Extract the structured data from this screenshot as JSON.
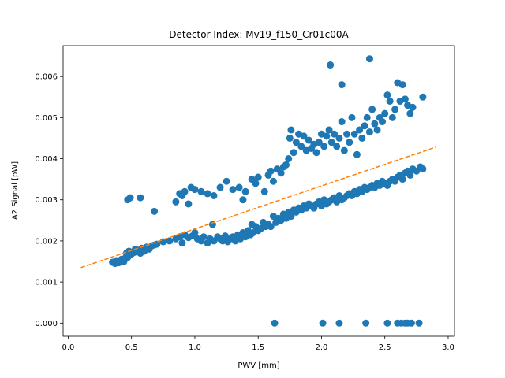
{
  "chart_data": {
    "type": "scatter",
    "title": "Detector Index: Mv19_f150_Cr01c00A",
    "xlabel": "PWV [mm]",
    "ylabel": "A2 Signal [pW]",
    "xlim": [
      -0.04,
      3.05
    ],
    "ylim": [
      -0.00032,
      0.00675
    ],
    "xticks": [
      0.0,
      0.5,
      1.0,
      1.5,
      2.0,
      2.5,
      3.0
    ],
    "xtick_labels": [
      "0.0",
      "0.5",
      "1.0",
      "1.5",
      "2.0",
      "2.5",
      "3.0"
    ],
    "yticks": [
      0.0,
      0.001,
      0.002,
      0.003,
      0.004,
      0.005,
      0.006
    ],
    "ytick_labels": [
      "0.000",
      "0.001",
      "0.002",
      "0.003",
      "0.004",
      "0.005",
      "0.006"
    ],
    "grid": false,
    "series": [
      {
        "name": "data",
        "color": "#1f77b4",
        "points": [
          [
            0.35,
            0.00148
          ],
          [
            0.37,
            0.00145
          ],
          [
            0.38,
            0.00152
          ],
          [
            0.4,
            0.00147
          ],
          [
            0.41,
            0.0015
          ],
          [
            0.42,
            0.00155
          ],
          [
            0.44,
            0.0015
          ],
          [
            0.45,
            0.00158
          ],
          [
            0.46,
            0.0017
          ],
          [
            0.47,
            0.0016
          ],
          [
            0.48,
            0.00175
          ],
          [
            0.5,
            0.00168
          ],
          [
            0.52,
            0.00172
          ],
          [
            0.53,
            0.0018
          ],
          [
            0.55,
            0.00175
          ],
          [
            0.57,
            0.0017
          ],
          [
            0.58,
            0.00182
          ],
          [
            0.6,
            0.00175
          ],
          [
            0.62,
            0.00185
          ],
          [
            0.64,
            0.0018
          ],
          [
            0.66,
            0.00188
          ],
          [
            0.68,
            0.0019
          ],
          [
            0.7,
            0.00192
          ],
          [
            0.75,
            0.00198
          ],
          [
            0.8,
            0.002
          ],
          [
            0.85,
            0.00205
          ],
          [
            0.88,
            0.0021
          ],
          [
            0.9,
            0.00195
          ],
          [
            0.92,
            0.00215
          ],
          [
            0.95,
            0.00208
          ],
          [
            0.98,
            0.00212
          ],
          [
            1.0,
            0.0022
          ],
          [
            1.02,
            0.00205
          ],
          [
            1.05,
            0.002
          ],
          [
            1.07,
            0.0021
          ],
          [
            1.1,
            0.00195
          ],
          [
            1.12,
            0.00205
          ],
          [
            1.14,
            0.0024
          ],
          [
            1.15,
            0.002
          ],
          [
            1.18,
            0.0021
          ],
          [
            1.2,
            0.00205
          ],
          [
            1.22,
            0.002
          ],
          [
            1.24,
            0.00212
          ],
          [
            1.26,
            0.00198
          ],
          [
            1.28,
            0.00205
          ],
          [
            1.3,
            0.0021
          ],
          [
            1.32,
            0.002
          ],
          [
            1.34,
            0.00215
          ],
          [
            1.36,
            0.00205
          ],
          [
            1.38,
            0.0022
          ],
          [
            1.4,
            0.0021
          ],
          [
            1.42,
            0.00225
          ],
          [
            1.44,
            0.00215
          ],
          [
            1.45,
            0.0024
          ],
          [
            1.46,
            0.0022
          ],
          [
            1.48,
            0.00235
          ],
          [
            1.5,
            0.00225
          ],
          [
            1.52,
            0.0023
          ],
          [
            1.54,
            0.00245
          ],
          [
            1.56,
            0.00235
          ],
          [
            1.58,
            0.0024
          ],
          [
            1.6,
            0.00235
          ],
          [
            1.62,
            0.0026
          ],
          [
            1.64,
            0.00245
          ],
          [
            1.66,
            0.00255
          ],
          [
            1.68,
            0.0025
          ],
          [
            1.7,
            0.00265
          ],
          [
            1.72,
            0.00255
          ],
          [
            1.74,
            0.0027
          ],
          [
            1.76,
            0.0026
          ],
          [
            1.78,
            0.00275
          ],
          [
            1.8,
            0.0027
          ],
          [
            1.82,
            0.0028
          ],
          [
            1.84,
            0.00275
          ],
          [
            1.86,
            0.00285
          ],
          [
            1.88,
            0.0028
          ],
          [
            1.9,
            0.0029
          ],
          [
            1.92,
            0.00285
          ],
          [
            1.94,
            0.0028
          ],
          [
            1.96,
            0.0029
          ],
          [
            1.98,
            0.00295
          ],
          [
            2.0,
            0.00285
          ],
          [
            2.02,
            0.003
          ],
          [
            2.04,
            0.0029
          ],
          [
            2.06,
            0.00295
          ],
          [
            2.08,
            0.003
          ],
          [
            2.1,
            0.00305
          ],
          [
            2.12,
            0.00295
          ],
          [
            2.14,
            0.0031
          ],
          [
            2.16,
            0.003
          ],
          [
            2.18,
            0.00305
          ],
          [
            2.2,
            0.0031
          ],
          [
            2.22,
            0.00315
          ],
          [
            2.24,
            0.0031
          ],
          [
            2.26,
            0.0032
          ],
          [
            2.28,
            0.00315
          ],
          [
            2.3,
            0.00325
          ],
          [
            2.32,
            0.0032
          ],
          [
            2.34,
            0.0033
          ],
          [
            2.36,
            0.00325
          ],
          [
            2.38,
            0.0033
          ],
          [
            2.4,
            0.00335
          ],
          [
            2.42,
            0.0033
          ],
          [
            2.44,
            0.0034
          ],
          [
            2.46,
            0.00335
          ],
          [
            2.48,
            0.00345
          ],
          [
            2.5,
            0.0034
          ],
          [
            2.52,
            0.00335
          ],
          [
            2.54,
            0.00345
          ],
          [
            2.56,
            0.0035
          ],
          [
            2.58,
            0.00345
          ],
          [
            2.6,
            0.00355
          ],
          [
            2.62,
            0.0036
          ],
          [
            2.64,
            0.0035
          ],
          [
            2.66,
            0.00365
          ],
          [
            2.68,
            0.0037
          ],
          [
            2.7,
            0.0036
          ],
          [
            2.72,
            0.00375
          ],
          [
            2.75,
            0.0037
          ],
          [
            2.78,
            0.0038
          ],
          [
            2.8,
            0.00375
          ],
          [
            0.47,
            0.003
          ],
          [
            0.49,
            0.00305
          ],
          [
            0.57,
            0.00305
          ],
          [
            0.68,
            0.00272
          ],
          [
            0.85,
            0.00295
          ],
          [
            0.88,
            0.00315
          ],
          [
            0.9,
            0.0031
          ],
          [
            0.92,
            0.0032
          ],
          [
            0.95,
            0.0029
          ],
          [
            0.97,
            0.0033
          ],
          [
            1.0,
            0.00325
          ],
          [
            1.05,
            0.0032
          ],
          [
            1.1,
            0.00315
          ],
          [
            1.15,
            0.0031
          ],
          [
            1.2,
            0.0033
          ],
          [
            1.25,
            0.00345
          ],
          [
            1.3,
            0.00325
          ],
          [
            1.35,
            0.0033
          ],
          [
            1.38,
            0.003
          ],
          [
            1.4,
            0.0032
          ],
          [
            1.45,
            0.0035
          ],
          [
            1.48,
            0.0034
          ],
          [
            1.5,
            0.00355
          ],
          [
            1.55,
            0.0032
          ],
          [
            1.58,
            0.0036
          ],
          [
            1.6,
            0.0037
          ],
          [
            1.62,
            0.00345
          ],
          [
            1.65,
            0.00375
          ],
          [
            1.68,
            0.00365
          ],
          [
            1.7,
            0.0038
          ],
          [
            1.72,
            0.00385
          ],
          [
            1.74,
            0.004
          ],
          [
            1.75,
            0.0045
          ],
          [
            1.76,
            0.0047
          ],
          [
            1.78,
            0.00415
          ],
          [
            1.8,
            0.0044
          ],
          [
            1.82,
            0.0046
          ],
          [
            1.84,
            0.0043
          ],
          [
            1.86,
            0.00455
          ],
          [
            1.88,
            0.0042
          ],
          [
            1.9,
            0.00445
          ],
          [
            1.92,
            0.00425
          ],
          [
            1.94,
            0.00435
          ],
          [
            1.96,
            0.00415
          ],
          [
            1.98,
            0.0044
          ],
          [
            2.0,
            0.0046
          ],
          [
            2.02,
            0.0043
          ],
          [
            2.04,
            0.00455
          ],
          [
            2.06,
            0.0047
          ],
          [
            2.08,
            0.0044
          ],
          [
            2.1,
            0.0046
          ],
          [
            2.12,
            0.0043
          ],
          [
            2.14,
            0.0045
          ],
          [
            2.16,
            0.0049
          ],
          [
            2.18,
            0.0042
          ],
          [
            2.2,
            0.0046
          ],
          [
            2.22,
            0.0044
          ],
          [
            2.24,
            0.005
          ],
          [
            2.26,
            0.0046
          ],
          [
            2.28,
            0.0041
          ],
          [
            2.3,
            0.0047
          ],
          [
            2.32,
            0.0045
          ],
          [
            2.34,
            0.0048
          ],
          [
            2.36,
            0.005
          ],
          [
            2.38,
            0.00465
          ],
          [
            2.4,
            0.0052
          ],
          [
            2.42,
            0.00485
          ],
          [
            2.44,
            0.0047
          ],
          [
            2.46,
            0.005
          ],
          [
            2.48,
            0.0049
          ],
          [
            2.5,
            0.0051
          ],
          [
            2.52,
            0.00555
          ],
          [
            2.54,
            0.0054
          ],
          [
            2.56,
            0.005
          ],
          [
            2.58,
            0.0052
          ],
          [
            2.6,
            0.00585
          ],
          [
            2.62,
            0.0054
          ],
          [
            2.64,
            0.0058
          ],
          [
            2.66,
            0.00545
          ],
          [
            2.68,
            0.0053
          ],
          [
            2.7,
            0.0051
          ],
          [
            2.72,
            0.00525
          ],
          [
            2.8,
            0.0055
          ],
          [
            2.07,
            0.00628
          ],
          [
            2.16,
            0.0058
          ],
          [
            2.38,
            0.00643
          ],
          [
            1.63,
            0.0
          ],
          [
            2.01,
            0.0
          ],
          [
            2.14,
            0.0
          ],
          [
            2.35,
            0.0
          ],
          [
            2.52,
            0.0
          ],
          [
            2.6,
            0.0
          ],
          [
            2.63,
            0.0
          ],
          [
            2.66,
            0.0
          ],
          [
            2.68,
            0.0
          ],
          [
            2.71,
            0.0
          ],
          [
            2.77,
            0.0
          ]
        ]
      }
    ],
    "fit_line": {
      "name": "fit",
      "color": "#ff7f0e",
      "style": "dashed",
      "points": [
        [
          0.1,
          0.00135
        ],
        [
          2.9,
          0.00428
        ]
      ]
    }
  }
}
